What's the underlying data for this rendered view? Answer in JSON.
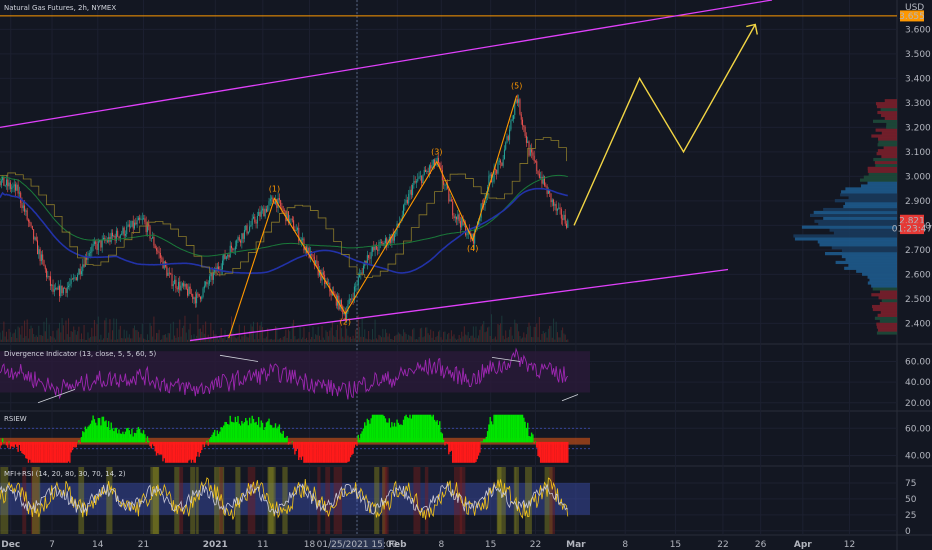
{
  "header": {
    "title": "Natural Gas Futures, 2h, NYMEX",
    "currency": "USD"
  },
  "colors": {
    "background": "#131722",
    "price_axis_line": "#ff9800",
    "channel": "#e040fb",
    "elliott": "#ff9800",
    "projection": "#f2d544",
    "divergence_line": "#9c27b0",
    "rsi_up": "#00e600",
    "rsi_down": "#ff1a1a",
    "mfi_band": "#3f51b5"
  },
  "chart_data": [
    {
      "type": "line",
      "name": "main",
      "title": "Natural Gas Futures, 2h, NYMEX",
      "x_ticks": [
        "Dec",
        "7",
        "14",
        "21",
        "2021",
        "11",
        "18",
        "01/25/2021  15:00",
        "Feb",
        "8",
        "15",
        "22",
        "Mar",
        "8",
        "15",
        "22",
        "26",
        "Apr",
        "12"
      ],
      "ylim": [
        2.32,
        3.72
      ],
      "y_ticks": [
        2.4,
        2.5,
        2.6,
        2.7,
        2.8,
        2.9,
        3.0,
        3.1,
        3.2,
        3.3,
        3.4,
        3.5,
        3.6
      ],
      "y_tick_labels": [
        "2.400",
        "2.500",
        "2.600",
        "2.700",
        "2.800",
        "2.900",
        "3.000",
        "3.100",
        "3.200",
        "3.300",
        "3.400",
        "3.500",
        "3.600"
      ],
      "price_labels": [
        {
          "value": 3.655,
          "text": "3.655",
          "color": "#ff9800"
        },
        {
          "value": 2.821,
          "text": "2.821",
          "color": "#e53935"
        },
        {
          "value": 2.787,
          "text": "01:23:47",
          "color": "#e53935"
        }
      ],
      "elliott_waves": [
        {
          "label": "(1)",
          "x": 0.306,
          "y": 2.91
        },
        {
          "label": "(2)",
          "x": 0.385,
          "y": 2.44
        },
        {
          "label": "(3)",
          "x": 0.487,
          "y": 3.06
        },
        {
          "label": "(4)",
          "x": 0.527,
          "y": 2.74
        },
        {
          "label": "(5)",
          "x": 0.576,
          "y": 3.33
        }
      ],
      "projection_path": [
        {
          "x": 0.64,
          "y": 2.8
        },
        {
          "x": 0.713,
          "y": 3.4
        },
        {
          "x": 0.762,
          "y": 3.1
        },
        {
          "x": 0.842,
          "y": 3.62
        }
      ],
      "current_price": 2.821
    },
    {
      "type": "line",
      "name": "divergence",
      "title": "Divergence Indicator (13, close, 5, 5, 60, 5)",
      "ylim": [
        13,
        76
      ],
      "y_ticks": [
        20,
        40,
        60
      ],
      "y_tick_labels": [
        "20.00",
        "40.00",
        "60.00"
      ],
      "band": [
        30,
        70
      ]
    },
    {
      "type": "area",
      "name": "rsiew",
      "title": "RSIEW",
      "ylim": [
        33,
        72
      ],
      "y_ticks": [
        40,
        60
      ],
      "y_tick_labels": [
        "40.00",
        "60.00"
      ],
      "band": [
        48,
        53
      ]
    },
    {
      "type": "line",
      "name": "mfi",
      "title": "MFI+RSI (14, 20, 80, 30, 70, 14, 2)",
      "ylim": [
        -5,
        100
      ],
      "y_ticks": [
        0,
        25,
        50,
        75
      ],
      "y_tick_labels": [
        "0",
        "25",
        "50",
        "75"
      ],
      "band": [
        25,
        75
      ]
    }
  ]
}
